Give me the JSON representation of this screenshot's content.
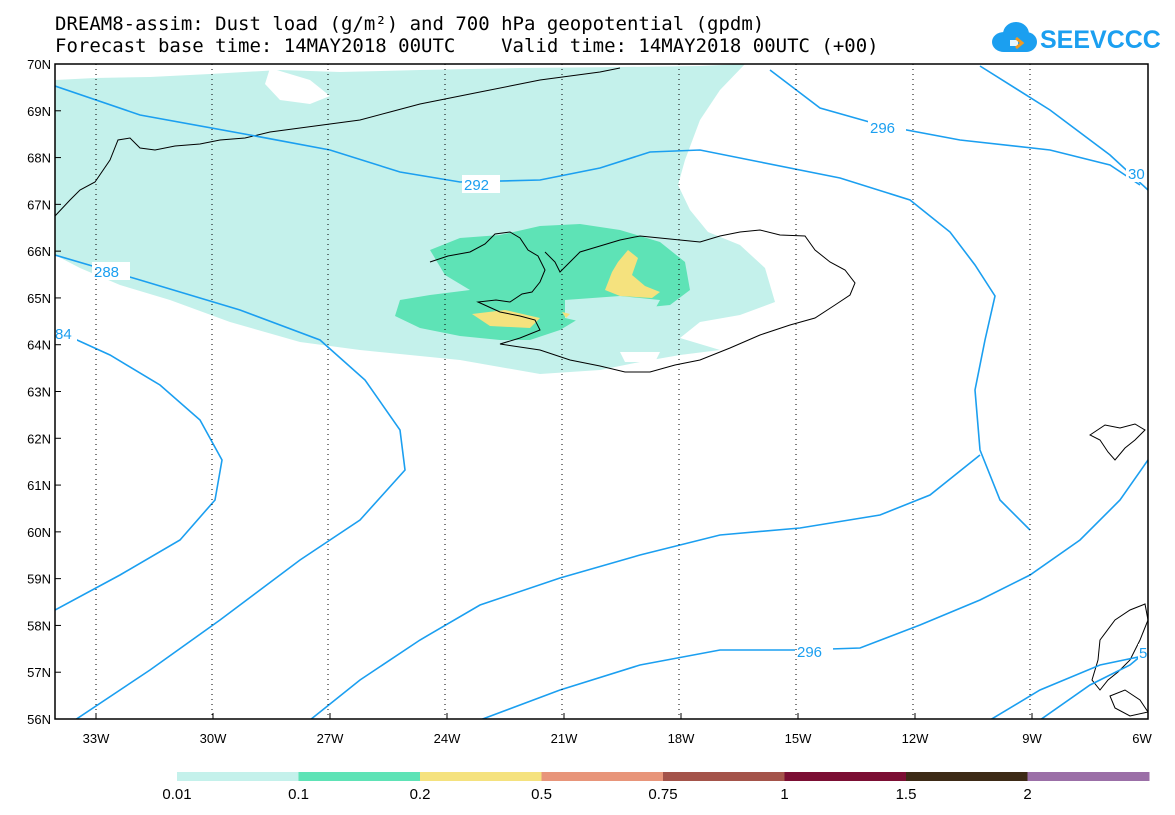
{
  "header": {
    "title_line1": "DREAM8-assim: Dust load (g/m²) and 700 hPa geopotential (gpdm)",
    "title_line2": "Forecast base time: 14MAY2018 00UTC    Valid time: 14MAY2018 00UTC (+00)"
  },
  "logo": {
    "text": "SEEVCCC",
    "icon": "cloud-icon"
  },
  "axes": {
    "lat_labels": [
      "70N",
      "69N",
      "68N",
      "67N",
      "66N",
      "65N",
      "64N",
      "63N",
      "62N",
      "61N",
      "60N",
      "59N",
      "58N",
      "57N",
      "56N"
    ],
    "lon_labels": [
      "33W",
      "30W",
      "27W",
      "24W",
      "21W",
      "18W",
      "15W",
      "12W",
      "9W",
      "6W"
    ]
  },
  "contour_labels": [
    "296",
    "292",
    "288",
    "84",
    "296",
    "30",
    "5"
  ],
  "colorbar": {
    "colors": [
      "#c4f1eb",
      "#5ee3b6",
      "#f5e27e",
      "#e8957a",
      "#a4534a",
      "#7b0e33",
      "#3d2a16",
      "#9b6fa7"
    ],
    "labels": [
      "0.01",
      "0.1",
      "0.2",
      "0.5",
      "0.75",
      "1",
      "1.5",
      "2"
    ]
  }
}
